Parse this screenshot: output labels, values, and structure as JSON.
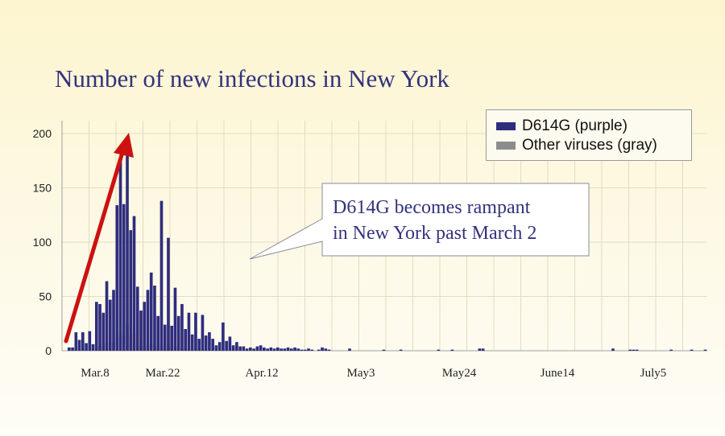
{
  "chart_data": {
    "type": "bar",
    "title": "Number of new infections in New York",
    "stacked": true,
    "y_ticks": [
      "0",
      "50",
      "100",
      "150",
      "200"
    ],
    "ylim": [
      0,
      210
    ],
    "x_tick_labels": [
      "Mar.8",
      "Mar.22",
      "Apr.12",
      "May3",
      "May24",
      "June14",
      "July5"
    ],
    "grid": true,
    "legend_position": "top-right",
    "series": [
      {
        "name": "D614G (purple)",
        "color": "#2e2d7d",
        "values": [
          3,
          3,
          17,
          10,
          17,
          7,
          18,
          6,
          45,
          43,
          35,
          64,
          47,
          56,
          134,
          175,
          135,
          197,
          111,
          124,
          59,
          37,
          45,
          56,
          72,
          60,
          32,
          138,
          24,
          104,
          23,
          58,
          32,
          43,
          20,
          35,
          15,
          35,
          11,
          33,
          14,
          17,
          11,
          5,
          8,
          26,
          9,
          13,
          5,
          8,
          4,
          4,
          2,
          3,
          2,
          4,
          5,
          3,
          2,
          3,
          2,
          3,
          2,
          2,
          3,
          2,
          3,
          2,
          1,
          1,
          2,
          1,
          0,
          1,
          3,
          2,
          1,
          0,
          0,
          0,
          0,
          0,
          2,
          0,
          0,
          0,
          0,
          0,
          0,
          0,
          0,
          0,
          1,
          0,
          0,
          0,
          0,
          1,
          0,
          0,
          0,
          0,
          0,
          0,
          0,
          0,
          0,
          0,
          1,
          0,
          0,
          0,
          1,
          0,
          0,
          0,
          0,
          0,
          0,
          0,
          2,
          2,
          0,
          0,
          0,
          0,
          0,
          0,
          0,
          0,
          0,
          0,
          0,
          0,
          0,
          0,
          0,
          0,
          0,
          0,
          0,
          0,
          0,
          0,
          0,
          0,
          0,
          0,
          0,
          0,
          0,
          0,
          0,
          0,
          0,
          0,
          0,
          0,
          0,
          2,
          0,
          0,
          0,
          0,
          1,
          1,
          1,
          0,
          0,
          0,
          0,
          0,
          0,
          0,
          0,
          0,
          1,
          0,
          0,
          0,
          0,
          0,
          1,
          0,
          0,
          0,
          1
        ]
      },
      {
        "name": "Other viruses (gray)",
        "color": "#8c8c8c",
        "values": [
          0,
          0,
          2,
          0,
          2,
          0,
          3,
          0,
          5,
          4,
          7,
          7,
          8,
          8,
          12,
          15,
          14,
          24,
          15,
          16,
          8,
          5,
          4,
          6,
          6,
          5,
          4,
          7,
          3,
          6,
          3,
          4,
          3,
          2,
          2,
          2,
          1,
          2,
          1,
          2,
          1,
          1,
          1,
          0,
          0,
          1,
          0,
          1,
          0,
          1,
          0,
          0,
          0,
          0,
          0,
          0,
          0,
          0,
          0,
          0,
          0,
          0,
          0,
          0,
          0,
          0,
          0,
          0,
          0,
          0,
          0,
          0,
          0,
          0,
          0,
          0,
          0,
          0,
          0,
          0,
          0,
          0,
          0,
          0,
          0,
          0,
          0,
          0,
          0,
          0,
          0,
          0,
          0,
          0,
          0,
          0,
          0,
          0,
          0,
          0,
          0,
          0,
          0,
          0,
          0,
          0,
          0,
          0,
          0,
          0,
          0,
          0,
          0,
          0,
          0,
          0,
          0,
          0,
          0,
          0,
          0,
          0,
          0,
          0,
          0,
          0,
          0,
          0,
          0,
          0,
          0,
          0,
          0,
          0,
          0,
          0,
          0,
          0,
          0,
          0,
          0,
          0,
          0,
          0,
          0,
          0,
          0,
          0,
          0,
          0,
          0,
          0,
          0,
          0,
          0,
          0,
          0,
          0,
          0,
          0,
          0,
          0,
          0,
          0,
          0,
          0,
          0,
          0,
          0,
          0,
          0,
          0,
          0,
          0,
          0,
          0,
          0,
          0,
          0,
          0,
          0,
          0,
          0,
          0,
          0,
          0
        ]
      }
    ],
    "annotation": {
      "lines": [
        "D614G becomes rampant",
        "in New York past March 2"
      ]
    },
    "trend_arrow_color": "#cc1111"
  }
}
